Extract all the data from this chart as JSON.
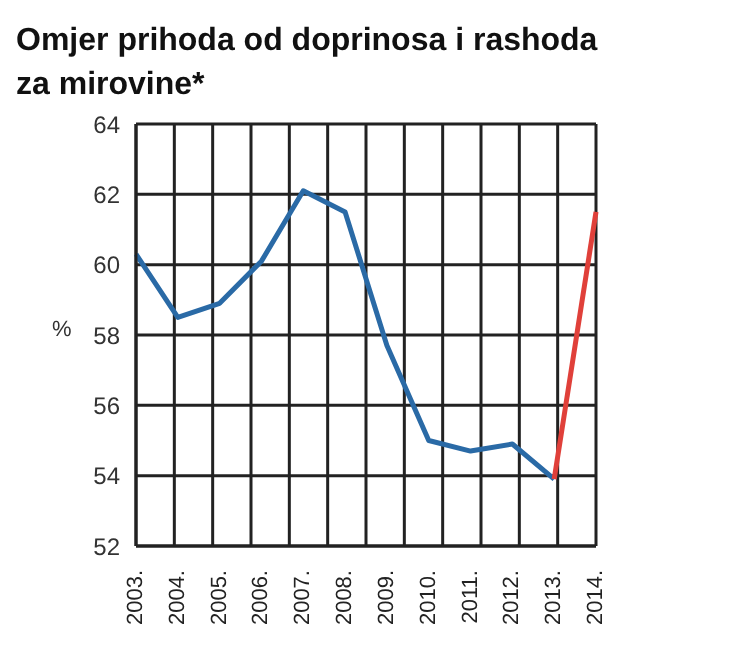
{
  "chart_data": {
    "type": "line",
    "title": "Omjer prihoda od doprinosa i rashoda za mirovine*",
    "ylabel": "%",
    "categories": [
      "2003.",
      "2004.",
      "2005.",
      "2006.",
      "2007.",
      "2008.",
      "2009.",
      "2010.",
      "2011.",
      "2012.",
      "2013.",
      "2014."
    ],
    "series": [
      {
        "color": "#2a6aa6",
        "values": [
          60.3,
          58.5,
          58.9,
          60.1,
          62.1,
          61.5,
          57.7,
          55.0,
          54.7,
          54.9,
          53.9,
          null
        ]
      },
      {
        "color": "#e0403a",
        "values": [
          null,
          null,
          null,
          null,
          null,
          null,
          null,
          null,
          null,
          null,
          53.9,
          61.5
        ]
      }
    ],
    "ylim": [
      52,
      64
    ],
    "yticks": [
      52,
      54,
      56,
      58,
      60,
      62,
      64
    ],
    "grid": true,
    "legend": false,
    "marker": "none",
    "line_style": "solid"
  }
}
